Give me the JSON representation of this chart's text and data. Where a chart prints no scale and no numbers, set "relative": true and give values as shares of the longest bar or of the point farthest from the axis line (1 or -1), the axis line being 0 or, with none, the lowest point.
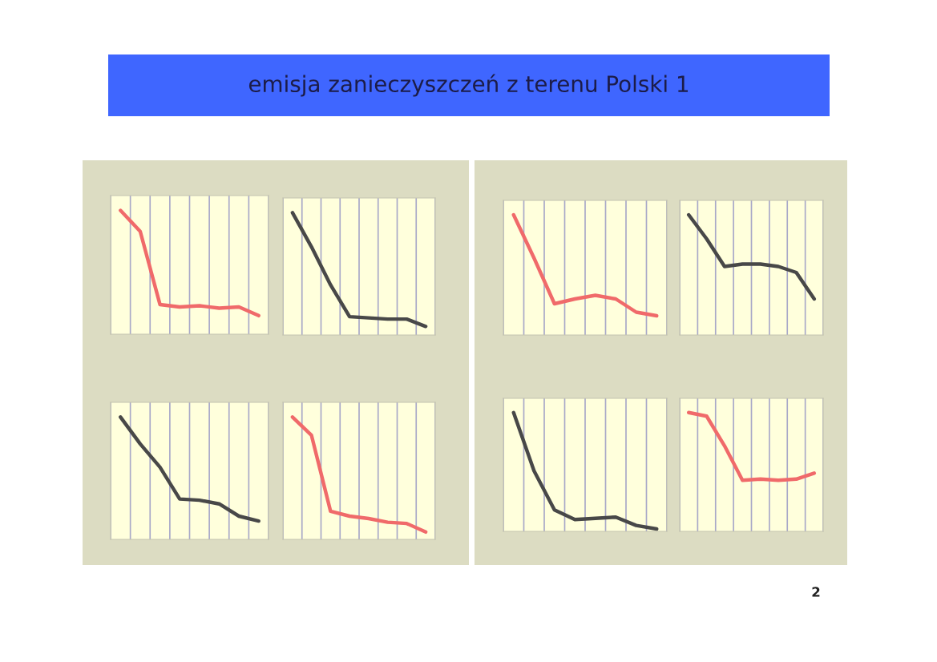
{
  "chart_data": [
    {
      "type": "other",
      "title": "emisja zanieczyszczeń z terenu Polski 1",
      "annotations": [
        "2"
      ]
    },
    {
      "type": "line",
      "relative": true,
      "grid": "x",
      "categories": [
        null,
        null,
        null,
        null,
        null,
        null,
        null,
        null
      ],
      "series": [
        {
          "color": "#f06a6a",
          "values": [
            1,
            0.83,
            0.24,
            0.22,
            0.23,
            0.21,
            0.22,
            0.15
          ]
        }
      ]
    },
    {
      "type": "line",
      "relative": true,
      "grid": "x",
      "categories": [
        null,
        null,
        null,
        null,
        null,
        null,
        null,
        null
      ],
      "series": [
        {
          "color": "#484848",
          "values": [
            1,
            0.72,
            0.41,
            0.15,
            0.14,
            0.13,
            0.13,
            0.07
          ]
        }
      ]
    },
    {
      "type": "line",
      "relative": true,
      "grid": "x",
      "categories": [
        null,
        null,
        null,
        null,
        null,
        null,
        null,
        null
      ],
      "series": [
        {
          "color": "#f06a6a",
          "values": [
            1,
            0.64,
            0.26,
            0.3,
            0.33,
            0.3,
            0.19,
            0.16
          ]
        }
      ]
    },
    {
      "type": "line",
      "relative": true,
      "grid": "x",
      "categories": [
        null,
        null,
        null,
        null,
        null,
        null,
        null,
        null
      ],
      "series": [
        {
          "color": "#484848",
          "values": [
            1,
            0.8,
            0.57,
            0.59,
            0.59,
            0.57,
            0.52,
            0.3
          ]
        }
      ]
    },
    {
      "type": "line",
      "relative": true,
      "grid": "x",
      "categories": [
        null,
        null,
        null,
        null,
        null,
        null,
        null,
        null
      ],
      "series": [
        {
          "color": "#484848",
          "values": [
            1,
            0.78,
            0.59,
            0.33,
            0.32,
            0.29,
            0.19,
            0.15
          ]
        }
      ]
    },
    {
      "type": "line",
      "relative": true,
      "grid": "x",
      "categories": [
        null,
        null,
        null,
        null,
        null,
        null,
        null,
        null
      ],
      "series": [
        {
          "color": "#f06a6a",
          "values": [
            1,
            0.85,
            0.23,
            0.19,
            0.17,
            0.14,
            0.13,
            0.06
          ]
        }
      ]
    },
    {
      "type": "line",
      "relative": true,
      "grid": "x",
      "categories": [
        null,
        null,
        null,
        null,
        null,
        null,
        null,
        null
      ],
      "series": [
        {
          "color": "#484848",
          "values": [
            1,
            0.51,
            0.18,
            0.1,
            0.11,
            0.12,
            0.05,
            0.02
          ]
        }
      ]
    },
    {
      "type": "line",
      "relative": true,
      "grid": "x",
      "categories": [
        null,
        null,
        null,
        null,
        null,
        null,
        null,
        null
      ],
      "series": [
        {
          "color": "#f06a6a",
          "values": [
            1,
            0.97,
            0.72,
            0.43,
            0.44,
            0.43,
            0.44,
            0.49
          ]
        }
      ]
    }
  ]
}
